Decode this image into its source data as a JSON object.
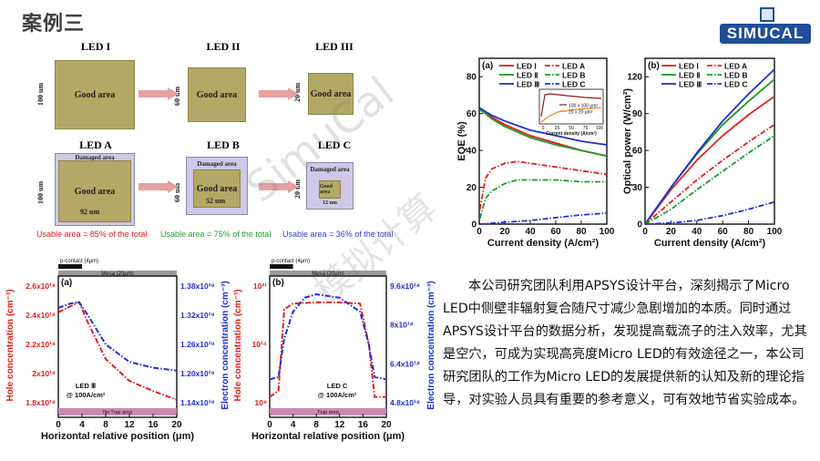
{
  "title": "案例三",
  "logo": {
    "text": "SIMUCAL"
  },
  "watermark": "SimuCal",
  "watermark_cn": "模拟计算",
  "leds_top": [
    {
      "label": "LED I",
      "color": "#d02020",
      "area": "Good area",
      "dim": "100 um"
    },
    {
      "label": "LED II",
      "color": "#2a9a3a",
      "area": "Good area",
      "dim": "60 um"
    },
    {
      "label": "LED III",
      "color": "#2a3fcf",
      "area": "Good area",
      "dim": "20 um"
    }
  ],
  "leds_bottom": [
    {
      "label": "LED A",
      "color": "#d02020",
      "area": "Good area",
      "damaged": "Damaged area",
      "dim_v": "100 um",
      "dim_h": "92 um",
      "usable": "Usable area = 85% of the total",
      "usable_color": "#d02020"
    },
    {
      "label": "LED B",
      "color": "#2a9a3a",
      "area": "Good area",
      "damaged": "Damaged area",
      "dim_v": "60 um",
      "dim_h": "52 um",
      "usable": "Usable area = 75% of the total",
      "usable_color": "#2a9a3a"
    },
    {
      "label": "LED C",
      "color": "#2a3fcf",
      "area": "Good area",
      "damaged": "Damaged area",
      "dim_v": "20 um",
      "dim_h": "12 um",
      "usable": "Usable area = 36% of the total",
      "usable_color": "#2a3fcf"
    }
  ],
  "paragraph": "本公司研究团队利用APSYS设计平台，深刻揭示了Micro LED中侧壁非辐射复合随尺寸减少急剧增加的本质。同时通过APSYS设计平台的数据分析，发现提高载流子的注入效率，尤其是空穴，可成为实现高亮度Micro LED的有效途径之一，本公司研究团队的工作为Micro LED的发展提供新的认知及新的理论指导，对实验人员具有重要的参考意义，可有效地节省实验成本。",
  "chart_data": [
    {
      "type": "line",
      "panel": "(a)",
      "xlabel": "Current density (A/cm²)",
      "ylabel": "EQE (%)",
      "xlim": [
        0,
        100
      ],
      "ylim": [
        0,
        90
      ],
      "xticks": [
        0,
        20,
        40,
        60,
        80,
        100
      ],
      "yticks": [
        0,
        20,
        40,
        60,
        80
      ],
      "series": [
        {
          "name": "LED Ⅰ",
          "color": "#e02020",
          "dash": "solid",
          "x": [
            0.5,
            5,
            10,
            20,
            40,
            60,
            80,
            100
          ],
          "y": [
            63,
            61,
            58,
            54,
            48,
            44,
            40,
            37
          ]
        },
        {
          "name": "LED Ⅱ",
          "color": "#1a9a2a",
          "dash": "solid",
          "x": [
            0.5,
            5,
            10,
            20,
            40,
            60,
            80,
            100
          ],
          "y": [
            62,
            60,
            57,
            53,
            47,
            43,
            40,
            37
          ]
        },
        {
          "name": "LED Ⅲ",
          "color": "#2030d0",
          "dash": "solid",
          "x": [
            0.5,
            5,
            10,
            20,
            40,
            60,
            80,
            100
          ],
          "y": [
            63,
            61,
            59,
            56,
            51,
            48,
            45,
            43
          ]
        },
        {
          "name": "LED A",
          "color": "#e02020",
          "dash": "dashdot",
          "x": [
            0.5,
            5,
            10,
            20,
            30,
            40,
            60,
            80,
            100
          ],
          "y": [
            8,
            25,
            30,
            33,
            34,
            33,
            31,
            29,
            27
          ]
        },
        {
          "name": "LED B",
          "color": "#1a9a2a",
          "dash": "dashdot",
          "x": [
            0.5,
            5,
            10,
            20,
            30,
            40,
            60,
            80,
            100
          ],
          "y": [
            3,
            14,
            18,
            22,
            24,
            24,
            24,
            23,
            23
          ]
        },
        {
          "name": "LED C",
          "color": "#2030d0",
          "dash": "dashdot",
          "x": [
            0.5,
            10,
            20,
            40,
            60,
            80,
            100
          ],
          "y": [
            0,
            0.5,
            1,
            2,
            3.5,
            5,
            6
          ]
        }
      ],
      "inset": {
        "xlabel": "Current density (A/cm²)",
        "xticks": [
          0,
          25,
          50,
          75,
          100
        ],
        "series": [
          {
            "name": "100 x 100 μm²",
            "color": "#8b1a1a"
          },
          {
            "name": "20 x 20 μm²",
            "color": "#f08a20"
          }
        ]
      }
    },
    {
      "type": "line",
      "panel": "(b)",
      "xlabel": "Current density (A/cm²)",
      "ylabel": "Optical power (W/cm²)",
      "xlim": [
        0,
        100
      ],
      "ylim": [
        0,
        135
      ],
      "xticks": [
        0,
        20,
        40,
        60,
        80,
        100
      ],
      "yticks": [
        0,
        30,
        60,
        90,
        120
      ],
      "series": [
        {
          "name": "LED Ⅰ",
          "color": "#e02020",
          "dash": "solid",
          "x": [
            0,
            20,
            40,
            60,
            80,
            100
          ],
          "y": [
            0,
            28,
            52,
            72,
            89,
            104
          ]
        },
        {
          "name": "LED Ⅱ",
          "color": "#1a9a2a",
          "dash": "solid",
          "x": [
            0,
            20,
            40,
            60,
            80,
            100
          ],
          "y": [
            0,
            30,
            57,
            81,
            100,
            118
          ]
        },
        {
          "name": "LED Ⅲ",
          "color": "#2030d0",
          "dash": "solid",
          "x": [
            0,
            20,
            40,
            60,
            80,
            100
          ],
          "y": [
            0,
            30,
            58,
            84,
            106,
            126
          ]
        },
        {
          "name": "LED A",
          "color": "#e02020",
          "dash": "dashdot",
          "x": [
            0,
            20,
            40,
            60,
            80,
            100
          ],
          "y": [
            0,
            18,
            36,
            52,
            67,
            81
          ]
        },
        {
          "name": "LED B",
          "color": "#1a9a2a",
          "dash": "dashdot",
          "x": [
            0,
            20,
            40,
            60,
            80,
            100
          ],
          "y": [
            0,
            12,
            28,
            43,
            58,
            72
          ]
        },
        {
          "name": "LED C",
          "color": "#2030d0",
          "dash": "dashdot",
          "x": [
            0,
            20,
            40,
            60,
            80,
            100
          ],
          "y": [
            0,
            1,
            3,
            7,
            12,
            18
          ]
        }
      ]
    },
    {
      "type": "line",
      "panel": "(a)",
      "xlabel": "Horizontal relative position (μm)",
      "ylabel": "Hole concentration (cm⁻³)",
      "ylabel2": "Electron concentration (cm⁻³)",
      "xlim": [
        0,
        20
      ],
      "xticks": [
        0,
        4,
        8,
        12,
        16,
        20
      ],
      "yticks_left": [
        "1.8x10¹⁸",
        "2x10¹⁸",
        "2.2x10¹⁸",
        "2.4x10¹⁸",
        "2.6x10¹⁸"
      ],
      "yticks_right": [
        "1.14x10¹⁹",
        "1.20x10¹⁹",
        "1.26x10¹⁹",
        "1.32x10¹⁹",
        "1.38x10¹⁹"
      ],
      "annotations": [
        "p-contact (4μm)",
        "Mesa (20μm)",
        "LED Ⅲ",
        "@ 100A/cm²",
        "No Trap area"
      ],
      "series": [
        {
          "name": "Hole",
          "color": "#e02020",
          "dash": "dashdot",
          "x": [
            0,
            2,
            3.5,
            5,
            8,
            12,
            16,
            20
          ],
          "y": [
            2.42,
            2.46,
            2.49,
            2.35,
            2.1,
            1.95,
            1.88,
            1.82
          ]
        },
        {
          "name": "Electron",
          "color": "#2030d0",
          "dash": "dashdot",
          "x": [
            0,
            2,
            3.5,
            5,
            8,
            12,
            16,
            20
          ],
          "y": [
            2.45,
            2.48,
            2.49,
            2.4,
            2.2,
            2.08,
            2.04,
            2.02
          ]
        }
      ]
    },
    {
      "type": "line",
      "panel": "(b)",
      "xlabel": "Horizontal relative position (μm)",
      "ylabel": "Hole concentration (cm⁻³)",
      "ylabel2": "Electron concentration (cm⁻³)",
      "xlim": [
        0,
        20
      ],
      "xticks": [
        0,
        4,
        8,
        12,
        16,
        20
      ],
      "yticks_left": [
        "10⁸",
        "10¹⁴",
        "10²¹"
      ],
      "yticks_right": [
        "4.8x10¹⁸",
        "6.4x10¹⁸",
        "8x10¹⁸",
        "9.6x10¹⁸"
      ],
      "annotations": [
        "p-contact (4μm)",
        "Mesa (20μm)",
        "LED C",
        "@ 100A/cm²",
        "Trap area",
        "No Trap area",
        "Trap area"
      ],
      "series": [
        {
          "name": "Hole",
          "color": "#e02020",
          "dash": "dashdot",
          "x": [
            0,
            1.5,
            2.5,
            4,
            8,
            12,
            15.5,
            17,
            18,
            20
          ],
          "y": [
            0.05,
            0.1,
            0.8,
            0.85,
            0.86,
            0.86,
            0.85,
            0.5,
            0.05,
            0.05
          ]
        },
        {
          "name": "Electron",
          "color": "#2030d0",
          "dash": "dashdot",
          "x": [
            0,
            1.5,
            2.5,
            4,
            6,
            8,
            12,
            15.5,
            17,
            18,
            20
          ],
          "y": [
            0.2,
            0.22,
            0.55,
            0.78,
            0.9,
            0.93,
            0.9,
            0.78,
            0.5,
            0.22,
            0.2
          ]
        }
      ]
    }
  ]
}
